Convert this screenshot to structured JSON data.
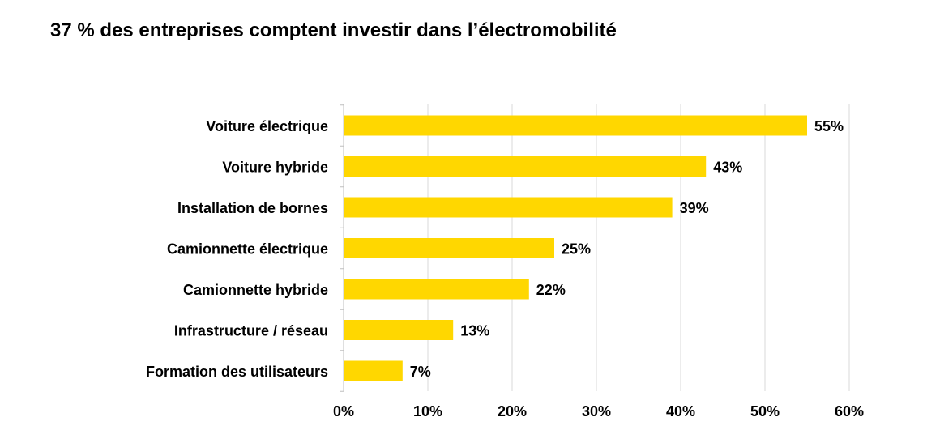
{
  "chart_data": {
    "type": "bar",
    "orientation": "horizontal",
    "title": "37 % des entreprises comptent investir dans l’électromobilité",
    "xlabel": "",
    "ylabel": "",
    "categories": [
      "Voiture électrique",
      "Voiture hybride",
      "Installation de bornes",
      "Camionnette électrique",
      "Camionnette hybride",
      "Infrastructure / réseau",
      "Formation des utilisateurs"
    ],
    "values": [
      55,
      43,
      39,
      25,
      22,
      13,
      7
    ],
    "value_labels": [
      "55%",
      "43%",
      "39%",
      "25%",
      "22%",
      "13%",
      "7%"
    ],
    "xlim": [
      0,
      60
    ],
    "xticks": [
      0,
      10,
      20,
      30,
      40,
      50,
      60
    ],
    "xtick_labels": [
      "0%",
      "10%",
      "20%",
      "30%",
      "40%",
      "50%",
      "60%"
    ],
    "grid": "vertical",
    "legend": "none",
    "bar_color": "#FFD700",
    "grid_color": "#D9D9D9",
    "axis_color": "#BFBFBF"
  }
}
